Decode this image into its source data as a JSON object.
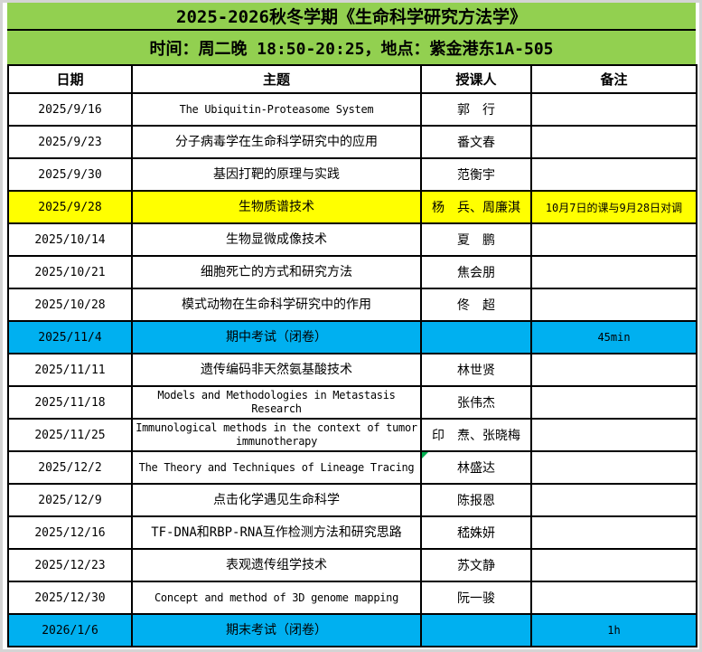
{
  "title": "2025-2026秋冬学期《生命科学研究方法学》",
  "subtitle": "时间：周二晚 18:50-20:25，地点：紫金港东1A-505",
  "columns": {
    "date": "日期",
    "topic": "主题",
    "speaker": "授课人",
    "note": "备注"
  },
  "colors": {
    "title_green": "#92D050",
    "highlight_yellow": "#FFFF00",
    "highlight_blue": "#00B0F0",
    "border_black": "#000000",
    "comment_flag_green": "#00B050"
  },
  "rows": [
    {
      "date": "2025/9/16",
      "topic": "The Ubiquitin-Proteasome System",
      "speaker": "郭　行",
      "note": ""
    },
    {
      "date": "2025/9/23",
      "topic": "分子病毒学在生命科学研究中的应用",
      "speaker": "番文春",
      "note": ""
    },
    {
      "date": "2025/9/30",
      "topic": "基因打靶的原理与实践",
      "speaker": "范衡宇",
      "note": ""
    },
    {
      "date": "2025/9/28",
      "topic": "生物质谱技术",
      "speaker": "杨　兵、周廉淇",
      "note": "10月7日的课与9月28日对调"
    },
    {
      "date": "2025/10/14",
      "topic": "生物显微成像技术",
      "speaker": "夏　鹏",
      "note": ""
    },
    {
      "date": "2025/10/21",
      "topic": "细胞死亡的方式和研究方法",
      "speaker": "焦会朋",
      "note": ""
    },
    {
      "date": "2025/10/28",
      "topic": "模式动物在生命科学研究中的作用",
      "speaker": "佟　超",
      "note": ""
    },
    {
      "date": "2025/11/4",
      "topic": "期中考试（闭卷）",
      "speaker": "",
      "note": "45min"
    },
    {
      "date": "2025/11/11",
      "topic": "遗传编码非天然氨基酸技术",
      "speaker": "林世贤",
      "note": ""
    },
    {
      "date": "2025/11/18",
      "topic": "Models and Methodologies in Metastasis Research",
      "speaker": "张伟杰",
      "note": ""
    },
    {
      "date": "2025/11/25",
      "topic": "Immunological methods in the context of tumor immunotherapy",
      "speaker": "印　焘、张晓梅",
      "note": ""
    },
    {
      "date": "2025/12/2",
      "topic": "The Theory and Techniques of Lineage Tracing",
      "speaker": "林盛达",
      "note": ""
    },
    {
      "date": "2025/12/9",
      "topic": "点击化学遇见生命科学",
      "speaker": "陈报恩",
      "note": ""
    },
    {
      "date": "2025/12/16",
      "topic": "TF-DNA和RBP-RNA互作检测方法和研究思路",
      "speaker": "嵇姝妍",
      "note": ""
    },
    {
      "date": "2025/12/23",
      "topic": "表观遗传组学技术",
      "speaker": "苏文静",
      "note": ""
    },
    {
      "date": "2025/12/30",
      "topic": "Concept and method of 3D genome mapping",
      "speaker": "阮一骏",
      "note": ""
    },
    {
      "date": "2026/1/6",
      "topic": "期末考试（闭卷）",
      "speaker": "",
      "note": "1h"
    }
  ]
}
